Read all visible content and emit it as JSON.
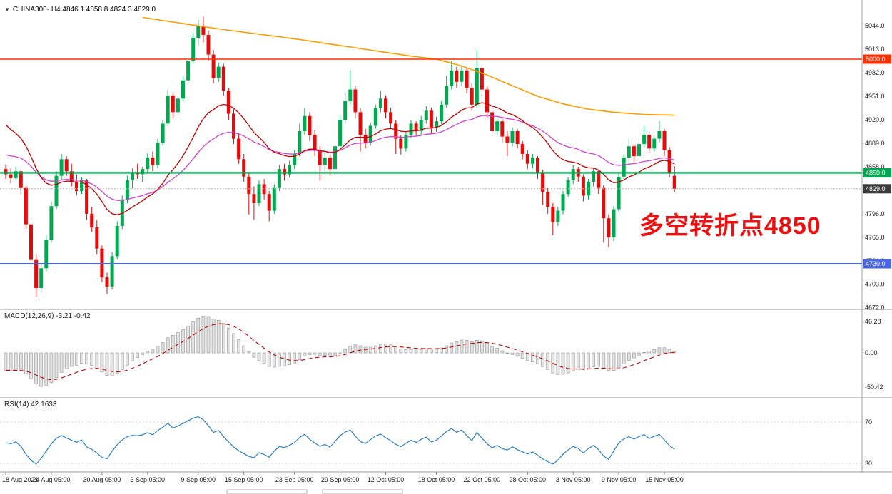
{
  "header": {
    "arrow_icon": "▼",
    "symbol": "CHINA300-.H4",
    "open": "4846.1",
    "high": "4858.8",
    "low": "4824.3",
    "close": "4829.0",
    "text": "CHINA300-.H4 4846.1 4858.8 4824.3 4829.0"
  },
  "annotation": {
    "text": "多空转折点4850",
    "color": "#ee1010"
  },
  "macd_panel": {
    "label": "MACD(12,26,9) -3.21 -0.42",
    "scale_labels": [
      "46.28",
      "0.00",
      "-50.42"
    ]
  },
  "rsi_panel": {
    "label": "RSI(14) 42.1633",
    "level_labels": [
      "70",
      "30"
    ]
  },
  "price_axis": {
    "tick_labels": [
      "5044.0",
      "5013.0",
      "4982.0",
      "4951.0",
      "4920.0",
      "4889.0",
      "4858.0",
      "4827.0",
      "4796.0",
      "4765.0",
      "4734.0",
      "4703.0",
      "4672.0"
    ]
  },
  "time_axis": {
    "labels": [
      {
        "text": "18 Aug 2021",
        "i": 0
      },
      {
        "text": "24 Aug 05:00",
        "i": 9
      },
      {
        "text": "30 Aug 05:00",
        "i": 19
      },
      {
        "text": "3 Sep 05:00",
        "i": 28
      },
      {
        "text": "9 Sep 05:00",
        "i": 38
      },
      {
        "text": "15 Sep 05:00",
        "i": 47
      },
      {
        "text": "23 Sep 05:00",
        "i": 57
      },
      {
        "text": "29 Sep 05:00",
        "i": 66
      },
      {
        "text": "12 Oct 05:00",
        "i": 75
      },
      {
        "text": "18 Oct 05:00",
        "i": 85
      },
      {
        "text": "22 Oct 05:00",
        "i": 94
      },
      {
        "text": "28 Oct 05:00",
        "i": 103
      },
      {
        "text": "3 Nov 05:00",
        "i": 112
      },
      {
        "text": "9 Nov 05:00",
        "i": 121
      },
      {
        "text": "15 Nov 05:00",
        "i": 130
      }
    ]
  },
  "chart_data": {
    "type": "candlestick",
    "symbol": "CHINA300-.H4",
    "timeframe": "H4",
    "title": "CHINA300-.H4 4846.1 4858.8 4824.3 4829.0",
    "y_axis_ticks": [
      5044,
      5013,
      4982,
      4951,
      4920,
      4889,
      4858,
      4827,
      4796,
      4765,
      4734,
      4703,
      4672
    ],
    "ylim": [
      4656,
      5078
    ],
    "colors": {
      "up": "#00a94f",
      "down": "#e60b0b",
      "ma_red": "#c00000",
      "ma_magenta": "#cc44cc",
      "ma_orange": "#ff9c00",
      "rsi": "#2e7fc2",
      "macd_signal": "#c00000",
      "hist_fill": "#e3e3e3",
      "hist_stroke": "#9d9d9d"
    },
    "hlines": [
      {
        "price": 5000,
        "label": "5000.0",
        "color": "#ff2e00",
        "width": 1.4
      },
      {
        "price": 4850,
        "label": "4850.0",
        "color": "#00a651",
        "width": 2.4
      },
      {
        "price": 4730,
        "label": "4730.0",
        "color": "#4a66e0",
        "width": 2
      }
    ],
    "last_price": {
      "price": 4829,
      "label": "4829.0",
      "box_color": "#3d3d3d",
      "line_color": "#b5b5b5"
    },
    "candles": [
      [
        4855,
        4861,
        4842,
        4848
      ],
      [
        4848,
        4856,
        4836,
        4843
      ],
      [
        4843,
        4858,
        4840,
        4852
      ],
      [
        4852,
        4854,
        4822,
        4830
      ],
      [
        4830,
        4834,
        4776,
        4782
      ],
      [
        4782,
        4790,
        4726,
        4735
      ],
      [
        4735,
        4742,
        4686,
        4698
      ],
      [
        4698,
        4730,
        4692,
        4724
      ],
      [
        4724,
        4768,
        4720,
        4762
      ],
      [
        4762,
        4812,
        4758,
        4806
      ],
      [
        4806,
        4852,
        4802,
        4846
      ],
      [
        4846,
        4875,
        4840,
        4868
      ],
      [
        4868,
        4872,
        4846,
        4852
      ],
      [
        4852,
        4862,
        4832,
        4838
      ],
      [
        4838,
        4848,
        4820,
        4826
      ],
      [
        4826,
        4844,
        4822,
        4840
      ],
      [
        4840,
        4842,
        4788,
        4796
      ],
      [
        4796,
        4805,
        4772,
        4778
      ],
      [
        4778,
        4788,
        4742,
        4750
      ],
      [
        4750,
        4754,
        4706,
        4712
      ],
      [
        4712,
        4718,
        4690,
        4700
      ],
      [
        4700,
        4745,
        4696,
        4740
      ],
      [
        4740,
        4786,
        4736,
        4780
      ],
      [
        4780,
        4820,
        4776,
        4815
      ],
      [
        4815,
        4846,
        4810,
        4840
      ],
      [
        4840,
        4856,
        4830,
        4850
      ],
      [
        4850,
        4862,
        4842,
        4848
      ],
      [
        4848,
        4858,
        4838,
        4855
      ],
      [
        4855,
        4876,
        4850,
        4870
      ],
      [
        4870,
        4878,
        4852,
        4860
      ],
      [
        4860,
        4895,
        4856,
        4890
      ],
      [
        4890,
        4920,
        4886,
        4915
      ],
      [
        4915,
        4960,
        4912,
        4952
      ],
      [
        4952,
        4956,
        4922,
        4930
      ],
      [
        4930,
        4952,
        4926,
        4948
      ],
      [
        4948,
        4978,
        4944,
        4972
      ],
      [
        4972,
        5005,
        4968,
        4998
      ],
      [
        4998,
        5035,
        4994,
        5028
      ],
      [
        5028,
        5052,
        5018,
        5044
      ],
      [
        5044,
        5056,
        5022,
        5032
      ],
      [
        5032,
        5038,
        4998,
        5006
      ],
      [
        5006,
        5012,
        4968,
        4975
      ],
      [
        4975,
        4996,
        4970,
        4990
      ],
      [
        4990,
        4994,
        4952,
        4958
      ],
      [
        4958,
        4962,
        4920,
        4928
      ],
      [
        4928,
        4934,
        4888,
        4895
      ],
      [
        4895,
        4902,
        4862,
        4868
      ],
      [
        4868,
        4875,
        4838,
        4845
      ],
      [
        4845,
        4850,
        4795,
        4822
      ],
      [
        4822,
        4832,
        4788,
        4810
      ],
      [
        4810,
        4840,
        4806,
        4835
      ],
      [
        4835,
        4842,
        4815,
        4822
      ],
      [
        4822,
        4826,
        4786,
        4800
      ],
      [
        4800,
        4835,
        4796,
        4830
      ],
      [
        4830,
        4860,
        4826,
        4855
      ],
      [
        4855,
        4862,
        4840,
        4848
      ],
      [
        4848,
        4866,
        4844,
        4860
      ],
      [
        4860,
        4880,
        4855,
        4875
      ],
      [
        4875,
        4915,
        4872,
        4905
      ],
      [
        4905,
        4935,
        4900,
        4925
      ],
      [
        4925,
        4930,
        4892,
        4900
      ],
      [
        4900,
        4906,
        4872,
        4880
      ],
      [
        4880,
        4885,
        4840,
        4860
      ],
      [
        4860,
        4876,
        4852,
        4870
      ],
      [
        4870,
        4874,
        4846,
        4855
      ],
      [
        4855,
        4890,
        4850,
        4885
      ],
      [
        4885,
        4925,
        4880,
        4920
      ],
      [
        4920,
        4955,
        4915,
        4945
      ],
      [
        4945,
        4985,
        4940,
        4960
      ],
      [
        4960,
        4965,
        4922,
        4930
      ],
      [
        4930,
        4935,
        4878,
        4900
      ],
      [
        4900,
        4908,
        4882,
        4890
      ],
      [
        4890,
        4916,
        4886,
        4912
      ],
      [
        4912,
        4940,
        4908,
        4935
      ],
      [
        4935,
        4958,
        4930,
        4948
      ],
      [
        4948,
        4952,
        4922,
        4930
      ],
      [
        4930,
        4936,
        4908,
        4915
      ],
      [
        4915,
        4920,
        4875,
        4895
      ],
      [
        4895,
        4900,
        4874,
        4882
      ],
      [
        4882,
        4905,
        4878,
        4900
      ],
      [
        4900,
        4920,
        4896,
        4915
      ],
      [
        4915,
        4918,
        4898,
        4905
      ],
      [
        4905,
        4925,
        4900,
        4920
      ],
      [
        4920,
        4938,
        4915,
        4932
      ],
      [
        4932,
        4936,
        4902,
        4910
      ],
      [
        4910,
        4924,
        4904,
        4918
      ],
      [
        4918,
        4945,
        4914,
        4940
      ],
      [
        4940,
        4978,
        4936,
        4965
      ],
      [
        4965,
        4998,
        4960,
        4985
      ],
      [
        4985,
        4990,
        4962,
        4970
      ],
      [
        4970,
        4992,
        4965,
        4985
      ],
      [
        4985,
        4988,
        4955,
        4962
      ],
      [
        4962,
        4968,
        4932,
        4940
      ],
      [
        4940,
        5012,
        4936,
        4988
      ],
      [
        4988,
        4992,
        4952,
        4960
      ],
      [
        4960,
        4965,
        4922,
        4930
      ],
      [
        4930,
        4936,
        4898,
        4905
      ],
      [
        4905,
        4922,
        4900,
        4918
      ],
      [
        4918,
        4922,
        4890,
        4898
      ],
      [
        4898,
        4905,
        4872,
        4890
      ],
      [
        4890,
        4910,
        4885,
        4905
      ],
      [
        4905,
        4908,
        4882,
        4888
      ],
      [
        4888,
        4892,
        4868,
        4875
      ],
      [
        4875,
        4880,
        4855,
        4862
      ],
      [
        4862,
        4875,
        4856,
        4870
      ],
      [
        4870,
        4872,
        4842,
        4850
      ],
      [
        4850,
        4854,
        4808,
        4825
      ],
      [
        4825,
        4830,
        4796,
        4805
      ],
      [
        4805,
        4810,
        4768,
        4785
      ],
      [
        4785,
        4805,
        4780,
        4800
      ],
      [
        4800,
        4826,
        4795,
        4822
      ],
      [
        4822,
        4845,
        4818,
        4840
      ],
      [
        4840,
        4860,
        4835,
        4855
      ],
      [
        4855,
        4858,
        4838,
        4845
      ],
      [
        4845,
        4848,
        4812,
        4820
      ],
      [
        4820,
        4842,
        4815,
        4838
      ],
      [
        4838,
        4856,
        4832,
        4852
      ],
      [
        4852,
        4854,
        4822,
        4830
      ],
      [
        4830,
        4834,
        4758,
        4790
      ],
      [
        4790,
        4795,
        4752,
        4765
      ],
      [
        4765,
        4806,
        4760,
        4802
      ],
      [
        4802,
        4850,
        4798,
        4845
      ],
      [
        4845,
        4874,
        4840,
        4870
      ],
      [
        4870,
        4895,
        4865,
        4885
      ],
      [
        4885,
        4888,
        4864,
        4872
      ],
      [
        4872,
        4892,
        4868,
        4888
      ],
      [
        4888,
        4912,
        4884,
        4900
      ],
      [
        4900,
        4904,
        4876,
        4882
      ],
      [
        4882,
        4898,
        4878,
        4895
      ],
      [
        4895,
        4918,
        4890,
        4905
      ],
      [
        4905,
        4908,
        4872,
        4880
      ],
      [
        4880,
        4884,
        4844,
        4850
      ],
      [
        4846.1,
        4858.8,
        4824.3,
        4829.0
      ]
    ],
    "ma_orange_points": [
      [
        27,
        5055
      ],
      [
        34,
        5048
      ],
      [
        42,
        5040
      ],
      [
        50,
        5033
      ],
      [
        58,
        5026
      ],
      [
        66,
        5018
      ],
      [
        74,
        5010
      ],
      [
        80,
        5004
      ],
      [
        85,
        5000
      ],
      [
        90,
        4991
      ],
      [
        95,
        4979
      ],
      [
        100,
        4965
      ],
      [
        105,
        4951
      ],
      [
        110,
        4941
      ],
      [
        115,
        4934
      ],
      [
        120,
        4930
      ],
      [
        126,
        4927
      ],
      [
        132,
        4926
      ]
    ],
    "ma_red": {
      "type": "ema",
      "period": 21,
      "seed": 4920
    },
    "ma_magenta": {
      "type": "ema",
      "period": 40,
      "seed": 4875
    },
    "macd": {
      "fast": 12,
      "slow": 26,
      "signal_period": 9,
      "value": -3.21,
      "signal_value": -0.42,
      "scale_max": 46.28,
      "scale_min": -50.42,
      "seed_fast": 4880,
      "seed_slow": 4905
    },
    "rsi": {
      "period": 14,
      "value": 42.1633,
      "levels": [
        70,
        30
      ]
    }
  }
}
